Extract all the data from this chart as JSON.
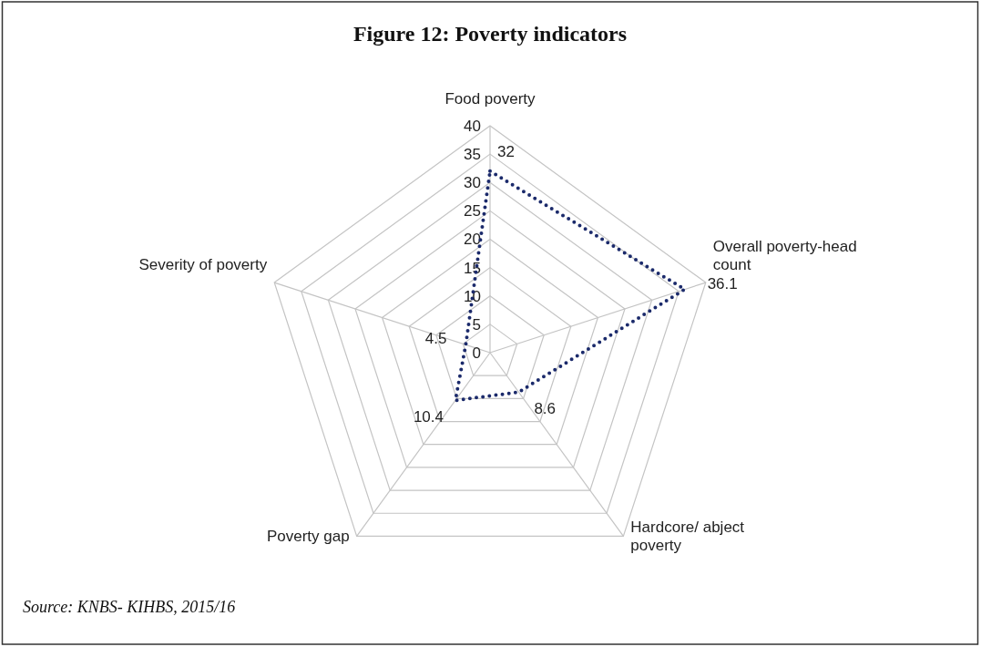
{
  "chart_data": {
    "type": "radar",
    "title": "Figure 12: Poverty indicators",
    "categories": [
      "Food poverty",
      "Overall poverty-head count",
      "Hardcore/ abject poverty",
      "Poverty gap",
      "Severity of poverty"
    ],
    "series": [
      {
        "color": "#1b2a6b",
        "values": [
          32,
          36.1,
          8.6,
          10.4,
          4.5
        ]
      }
    ],
    "ylim": [
      0,
      40
    ],
    "yticks": [
      0,
      5,
      10,
      15,
      20,
      25,
      30,
      35,
      40
    ],
    "grid": true,
    "line_style": "dotted",
    "data_labels": true,
    "annotations": [
      "Source: KNBS- KIHBS, 2015/16"
    ]
  }
}
